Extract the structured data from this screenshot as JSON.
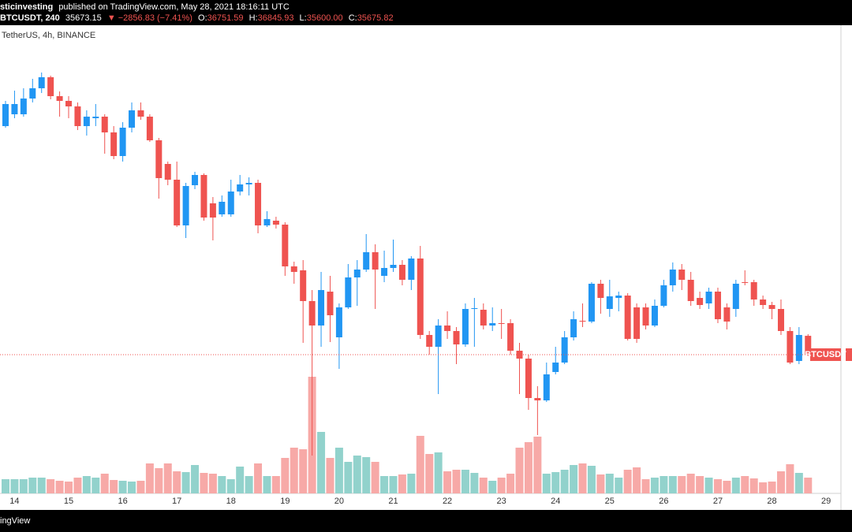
{
  "header": {
    "author": "sticinvesting",
    "published": "published on TradingView.com, May 28, 2021 18:16:11 UTC",
    "symbol": "BTCUSDT, 240",
    "last": "35673.15",
    "change": "▼ −2856.83 (−7.41%)",
    "o_label": "O:",
    "o": "36751.59",
    "h_label": "H:",
    "h": "36845.93",
    "l_label": "L:",
    "l": "35600.00",
    "c_label": "C:",
    "c": "35675.82",
    "subtitle": "TetherUS, 4h, BINANCE"
  },
  "footer": "ingView",
  "chart_data": {
    "type": "candlestick",
    "categories": [
      null,
      "14",
      null,
      null,
      null,
      null,
      null,
      "15",
      null,
      null,
      null,
      null,
      null,
      "16",
      null,
      null,
      null,
      null,
      null,
      "17",
      null,
      null,
      null,
      null,
      null,
      "18",
      null,
      null,
      null,
      null,
      null,
      "19",
      null,
      null,
      null,
      null,
      null,
      "20",
      null,
      null,
      null,
      null,
      null,
      "21",
      null,
      null,
      null,
      null,
      null,
      "22",
      null,
      null,
      null,
      null,
      null,
      "23",
      null,
      null,
      null,
      null,
      null,
      "24",
      null,
      null,
      null,
      null,
      null,
      "25",
      null,
      null,
      null,
      null,
      null,
      "26",
      null,
      null,
      null,
      null,
      null,
      "27",
      null,
      null,
      null,
      null,
      null,
      "28",
      null,
      null,
      null,
      null,
      null,
      "29"
    ],
    "open": [
      48725,
      49400,
      49400,
      50300,
      50885,
      51515,
      50435,
      50165,
      49850,
      48725,
      49175,
      49265,
      48365,
      47015,
      48635,
      49625,
      49265,
      47915,
      46565,
      45665,
      43055,
      45350,
      45935,
      44315,
      43685,
      43685,
      44990,
      45395,
      45485,
      43055,
      43325,
      43100,
      40715,
      40490,
      38735,
      37340,
      39275,
      36665,
      38375,
      40085,
      40535,
      41525,
      40175,
      40625,
      40805,
      39950,
      41165,
      36800,
      36125,
      37340,
      37025,
      36260,
      38285,
      38240,
      37340,
      37475,
      37475,
      35900,
      35450,
      33200,
      33065,
      34685,
      35225,
      36665,
      37610,
      37565,
      39725,
      38285,
      38915,
      39050,
      38375,
      38375,
      37340,
      38465,
      39635,
      40535,
      39950,
      38915,
      38600,
      39275,
      38375,
      38285,
      39815,
      39815,
      38825,
      38510,
      38285,
      37025,
      35315,
      36751.59,
      null,
      null
    ],
    "high": [
      50165,
      50750,
      50885,
      51425,
      51785,
      51605,
      50705,
      50435,
      50075,
      49625,
      49985,
      49400,
      48725,
      48950,
      50075,
      50075,
      49400,
      48050,
      46700,
      46700,
      45485,
      46115,
      46025,
      44675,
      44765,
      45665,
      45935,
      45800,
      45665,
      43865,
      43550,
      43235,
      40985,
      41075,
      39365,
      40400,
      40175,
      38600,
      40850,
      41075,
      42560,
      41975,
      41615,
      42245,
      41075,
      41300,
      41885,
      37025,
      37700,
      38150,
      37250,
      38600,
      38915,
      38600,
      38375,
      38285,
      37700,
      36350,
      35675,
      33875,
      35225,
      36125,
      37025,
      38150,
      38600,
      39815,
      39950,
      39950,
      39275,
      39185,
      38600,
      38600,
      38825,
      39950,
      40940,
      40850,
      40400,
      39275,
      39500,
      39500,
      38600,
      39950,
      40490,
      39950,
      39050,
      38690,
      38825,
      37250,
      37250,
      36845.93,
      null,
      null
    ],
    "low": [
      48635,
      49175,
      49265,
      50075,
      50615,
      50255,
      49265,
      49175,
      48500,
      48185,
      48725,
      47150,
      46835,
      46700,
      48365,
      49085,
      47825,
      44585,
      45350,
      42965,
      42335,
      45125,
      43325,
      42200,
      43550,
      43550,
      44765,
      44765,
      42605,
      42965,
      42875,
      40175,
      39725,
      36350,
      29915,
      36125,
      36395,
      34865,
      38285,
      38465,
      40400,
      38285,
      39815,
      40400,
      39635,
      39365,
      36575,
      35675,
      33425,
      36575,
      35135,
      36125,
      36125,
      37115,
      37025,
      36575,
      35675,
      33425,
      32525,
      31085,
      32975,
      34550,
      35135,
      36485,
      37250,
      37475,
      38015,
      37835,
      38150,
      36485,
      36350,
      37115,
      37250,
      38375,
      39275,
      39365,
      38465,
      38285,
      38285,
      37475,
      37115,
      37835,
      39635,
      38465,
      38285,
      37700,
      36800,
      35135,
      35135,
      35600,
      null,
      null
    ],
    "close": [
      49985,
      49985,
      50300,
      50885,
      51515,
      50435,
      50165,
      49850,
      48725,
      49265,
      49265,
      48365,
      47015,
      48635,
      49625,
      49265,
      47915,
      45755,
      45665,
      43055,
      45305,
      45935,
      43505,
      43505,
      44405,
      44990,
      45395,
      45485,
      43055,
      43415,
      43100,
      40715,
      40400,
      38735,
      37340,
      39365,
      37925,
      38375,
      40085,
      40535,
      41525,
      40535,
      40625,
      40805,
      39950,
      41165,
      36800,
      36125,
      37340,
      37025,
      36260,
      38285,
      38330,
      37340,
      37475,
      37430,
      35900,
      35450,
      33200,
      33065,
      34550,
      35225,
      36665,
      37700,
      37565,
      39725,
      38915,
      39005,
      39050,
      36575,
      36575,
      37340,
      38465,
      39635,
      40535,
      39950,
      38735,
      38510,
      39275,
      37700,
      37565,
      39725,
      39770,
      38825,
      38510,
      38285,
      37025,
      35225,
      36800,
      35675.82,
      null,
      null
    ],
    "volume": [
      18,
      18,
      18,
      20,
      20,
      18,
      16,
      15,
      20,
      22,
      20,
      25,
      17,
      16,
      15,
      16,
      38,
      32,
      38,
      28,
      27,
      36,
      26,
      25,
      22,
      18,
      34,
      22,
      38,
      22,
      22,
      45,
      58,
      56,
      148,
      78,
      45,
      58,
      40,
      48,
      46,
      40,
      22,
      22,
      24,
      25,
      73,
      50,
      52,
      28,
      30,
      30,
      26,
      20,
      16,
      20,
      25,
      58,
      65,
      72,
      25,
      27,
      30,
      36,
      38,
      35,
      24,
      25,
      20,
      30,
      33,
      18,
      20,
      22,
      22,
      22,
      25,
      22,
      20,
      18,
      16,
      20,
      22,
      19,
      14,
      15,
      28,
      37,
      26,
      20,
      null,
      null
    ],
    "ylim": [
      27755,
      54485
    ],
    "volume_ylim": [
      0,
      300
    ],
    "up_color": "#2196f3",
    "down_color": "#ef5350",
    "volume_up_color": "#92d2cc",
    "volume_down_color": "#f7a9a7",
    "price_tag": "BTCUSDT"
  }
}
